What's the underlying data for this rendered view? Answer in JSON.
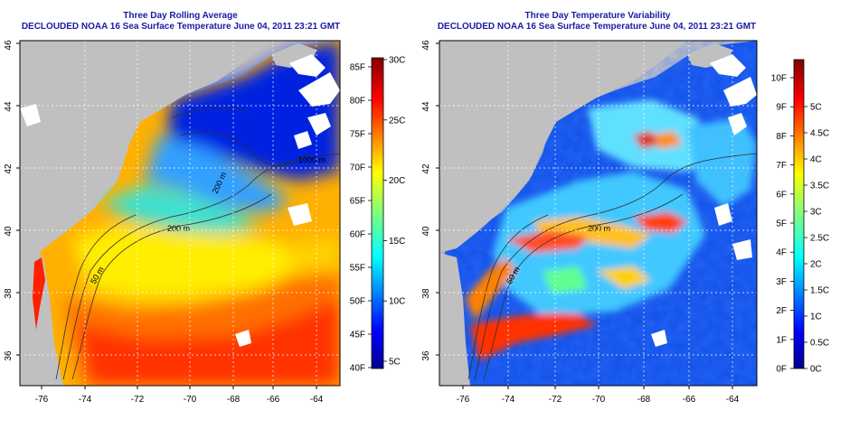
{
  "left_panel": {
    "title_line1": "Three Day Rolling Average",
    "title_line2": "DECLOUDED NOAA 16 Sea Surface Temperature June 04, 2011 23:21 GMT",
    "lat_labels": [
      "36",
      "38",
      "40",
      "42",
      "44",
      "46"
    ],
    "lon_labels": [
      "-76",
      "-74",
      "-72",
      "-70",
      "-68",
      "-66",
      "-64"
    ],
    "contour_labels": [
      "200 m",
      "50 m",
      "200 m",
      "1000 m"
    ],
    "colorbar": {
      "fahrenheit_labels": [
        "40F",
        "45F",
        "50F",
        "55F",
        "60F",
        "65F",
        "70F",
        "75F",
        "80F",
        "85F"
      ],
      "celsius_labels": [
        "5C",
        "10C",
        "15C",
        "20C",
        "25C",
        "30C"
      ]
    }
  },
  "right_panel": {
    "title_line1": "Three Day Temperature Variability",
    "title_line2": "DECLOUDED NOAA 16 Sea Surface Temperature June 04, 2011 23:21 GMT",
    "lat_labels": [
      "36",
      "38",
      "40",
      "42",
      "44",
      "46"
    ],
    "lon_labels": [
      "-76",
      "-74",
      "-72",
      "-70",
      "-68",
      "-66",
      "-64"
    ],
    "contour_labels": [
      "200 m",
      "50 m"
    ],
    "colorbar": {
      "fahrenheit_labels": [
        "0F",
        "1F",
        "2F",
        "3F",
        "4F",
        "5F",
        "6F",
        "7F",
        "8F",
        "9F",
        "10F"
      ],
      "celsius_labels": [
        "0C",
        "0.5C",
        "1C",
        "1.5C",
        "2C",
        "2.5C",
        "3C",
        "3.5C",
        "4C",
        "4.5C",
        "5C"
      ]
    }
  },
  "colors": {
    "title": "#1a1aa6",
    "land": "#c0c0c0",
    "jet_scale": [
      "#00008f",
      "#0000ff",
      "#0080ff",
      "#00ffff",
      "#80ff80",
      "#ffff00",
      "#ff8000",
      "#ff0000",
      "#800000"
    ]
  }
}
